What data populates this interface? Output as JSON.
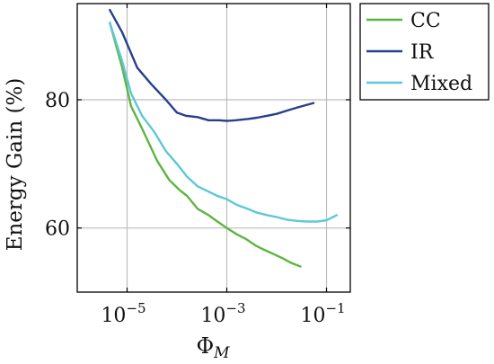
{
  "chart_data": {
    "type": "line",
    "title": "",
    "xlabel": "Φ_M",
    "xlabel_base": "Φ",
    "xlabel_sub": "M",
    "ylabel": "Energy Gain (%)",
    "x_scale": "log",
    "xlim": [
      1e-06,
      0.3
    ],
    "ylim": [
      50,
      95
    ],
    "grid": true,
    "legend_position": "outside-top-right",
    "x_ticks": [
      {
        "value": 1e-05,
        "base": "10",
        "exp": "−5"
      },
      {
        "value": 0.001,
        "base": "10",
        "exp": "−3"
      },
      {
        "value": 0.1,
        "base": "10",
        "exp": "−1"
      }
    ],
    "y_ticks": [
      {
        "value": 60,
        "label": "60"
      },
      {
        "value": 80,
        "label": "80"
      }
    ],
    "series": [
      {
        "name": "CC",
        "color": "#5db541",
        "x": [
          4.5e-06,
          8e-06,
          1.2e-05,
          2e-05,
          4e-05,
          7e-05,
          0.00011,
          0.00016,
          0.00026,
          0.00043,
          0.00065,
          0.001,
          0.0016,
          0.0024,
          0.0039,
          0.0056,
          0.0083,
          0.013,
          0.019,
          0.03
        ],
        "y": [
          92,
          85,
          79,
          75.5,
          70.5,
          67.5,
          66,
          65,
          63,
          62,
          61,
          60,
          59,
          58.3,
          57.2,
          56.6,
          56,
          55.3,
          54.6,
          54
        ]
      },
      {
        "name": "IR",
        "color": "#27408b",
        "x": [
          4.5e-06,
          8e-06,
          1.6e-05,
          3e-05,
          6e-05,
          0.0001,
          0.00015,
          0.00026,
          0.00043,
          0.0007,
          0.001,
          0.0015,
          0.0026,
          0.004,
          0.0065,
          0.01,
          0.016,
          0.026,
          0.055
        ],
        "y": [
          94,
          90.5,
          85,
          82.5,
          80,
          78,
          77.5,
          77.3,
          76.8,
          76.8,
          76.7,
          76.8,
          77,
          77.2,
          77.5,
          77.8,
          78.3,
          78.8,
          79.5
        ]
      },
      {
        "name": "Mixed",
        "color": "#5cc8d8",
        "x": [
          4.5e-06,
          8e-06,
          1.2e-05,
          2e-05,
          3.5e-05,
          6e-05,
          0.0001,
          0.00016,
          0.00026,
          0.0004,
          0.00065,
          0.001,
          0.0016,
          0.0026,
          0.004,
          0.0065,
          0.01,
          0.016,
          0.026,
          0.04,
          0.065,
          0.1,
          0.16
        ],
        "y": [
          92,
          86,
          81,
          77.5,
          75,
          72,
          70,
          68,
          66.5,
          65.8,
          65,
          64.5,
          63.6,
          63,
          62.4,
          62,
          61.7,
          61.3,
          61.1,
          61,
          61,
          61.2,
          62
        ]
      }
    ]
  }
}
